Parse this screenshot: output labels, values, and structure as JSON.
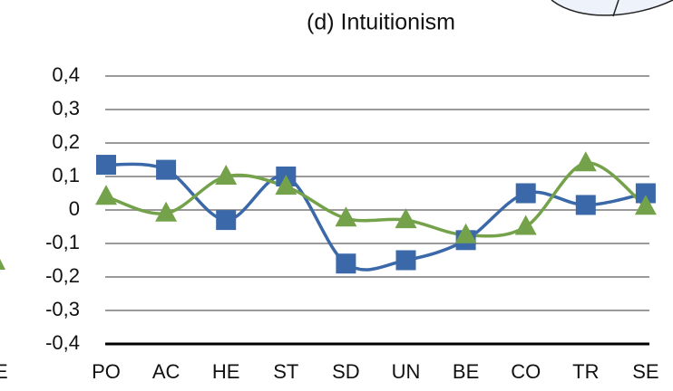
{
  "chart_data": {
    "type": "line",
    "title": "(d) Intuitionism",
    "categories": [
      "PO",
      "AC",
      "HE",
      "ST",
      "SD",
      "UN",
      "BE",
      "CO",
      "TR",
      "SE"
    ],
    "series": [
      {
        "color": "#3a68a8",
        "marker": "square",
        "values": [
          0.135,
          0.12,
          -0.03,
          0.1,
          -0.16,
          -0.15,
          -0.09,
          0.05,
          0.015,
          0.05
        ]
      },
      {
        "color": "#74a24a",
        "marker": "triangle",
        "values": [
          0.04,
          -0.01,
          0.1,
          0.07,
          -0.025,
          -0.03,
          -0.075,
          -0.05,
          0.14,
          0.01
        ]
      }
    ],
    "ylim": [
      -0.4,
      0.4
    ],
    "yticks": [
      {
        "value": -0.4,
        "label": "-0,4"
      },
      {
        "value": -0.3,
        "label": "-0,3"
      },
      {
        "value": -0.2,
        "label": "-0,2"
      },
      {
        "value": -0.1,
        "label": "-0,1"
      },
      0,
      {
        "value": 0.1,
        "label": "0,1"
      },
      {
        "value": 0.2,
        "label": "0,2"
      },
      {
        "value": 0.3,
        "label": "0,3"
      },
      {
        "value": 0.4,
        "label": "0,4"
      }
    ],
    "grid": true,
    "smooth": true,
    "annotations": [
      "E"
    ]
  }
}
